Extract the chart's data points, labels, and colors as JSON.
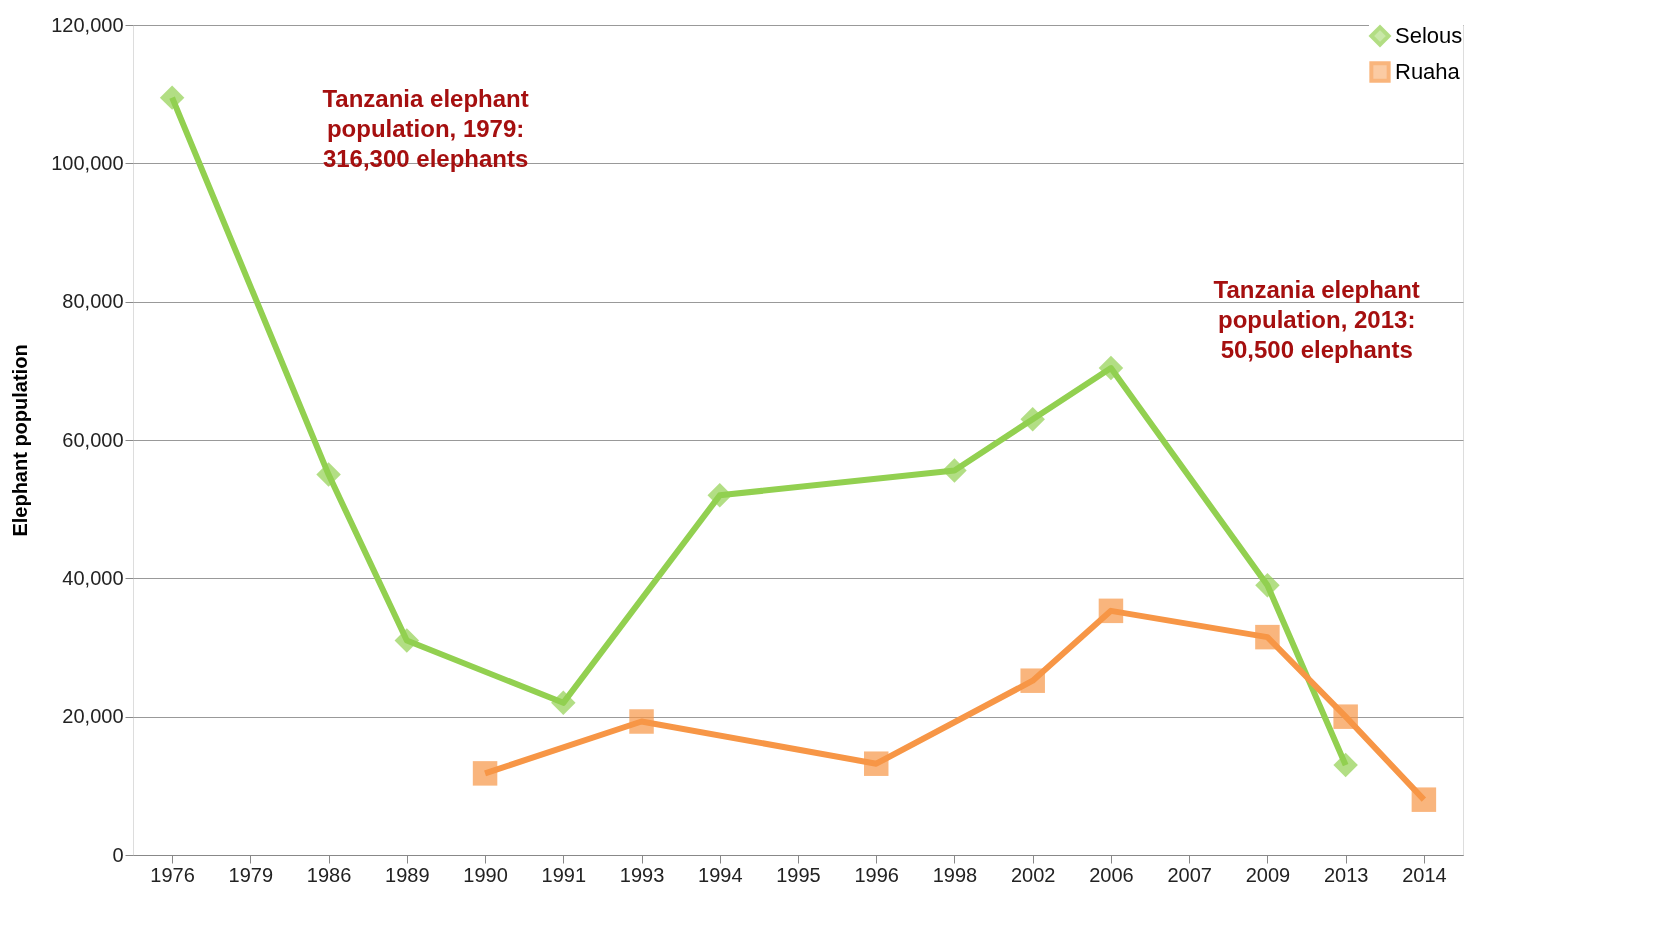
{
  "chart_data": {
    "type": "line",
    "ylabel": "Elephant population",
    "categories": [
      "1976",
      "1979",
      "1986",
      "1989",
      "1990",
      "1991",
      "1993",
      "1994",
      "1995",
      "1996",
      "1998",
      "2002",
      "2006",
      "2007",
      "2009",
      "2013",
      "2014"
    ],
    "series": [
      {
        "name": "Selous",
        "color": "#92d050",
        "marker": "diamond",
        "values": [
          109500,
          null,
          55000,
          31000,
          null,
          22000,
          null,
          52000,
          null,
          null,
          55600,
          63000,
          70400,
          null,
          39000,
          13000,
          null
        ]
      },
      {
        "name": "Ruaha",
        "color": "#f79646",
        "marker": "square",
        "values": [
          null,
          null,
          null,
          null,
          11800,
          null,
          19300,
          null,
          null,
          13200,
          null,
          25200,
          35300,
          null,
          31500,
          20000,
          8000
        ]
      }
    ],
    "ylim": [
      0,
      120000
    ],
    "yticks": [
      0,
      {
        "value": 20000,
        "label": "20,000"
      },
      {
        "value": 40000,
        "label": "40,000"
      },
      {
        "value": 60000,
        "label": "60,000"
      },
      {
        "value": 80000,
        "label": "80,000"
      },
      {
        "value": 100000,
        "label": "100,000"
      },
      {
        "value": 120000,
        "label": "120,000"
      }
    ],
    "grid": "y",
    "legend": "top right",
    "annotations": [
      "Tanzania elephant\npopulation, 1979:\n316,300 elephants",
      "Tanzania elephant\npopulation, 2013:\n50,500 elephants"
    ]
  }
}
